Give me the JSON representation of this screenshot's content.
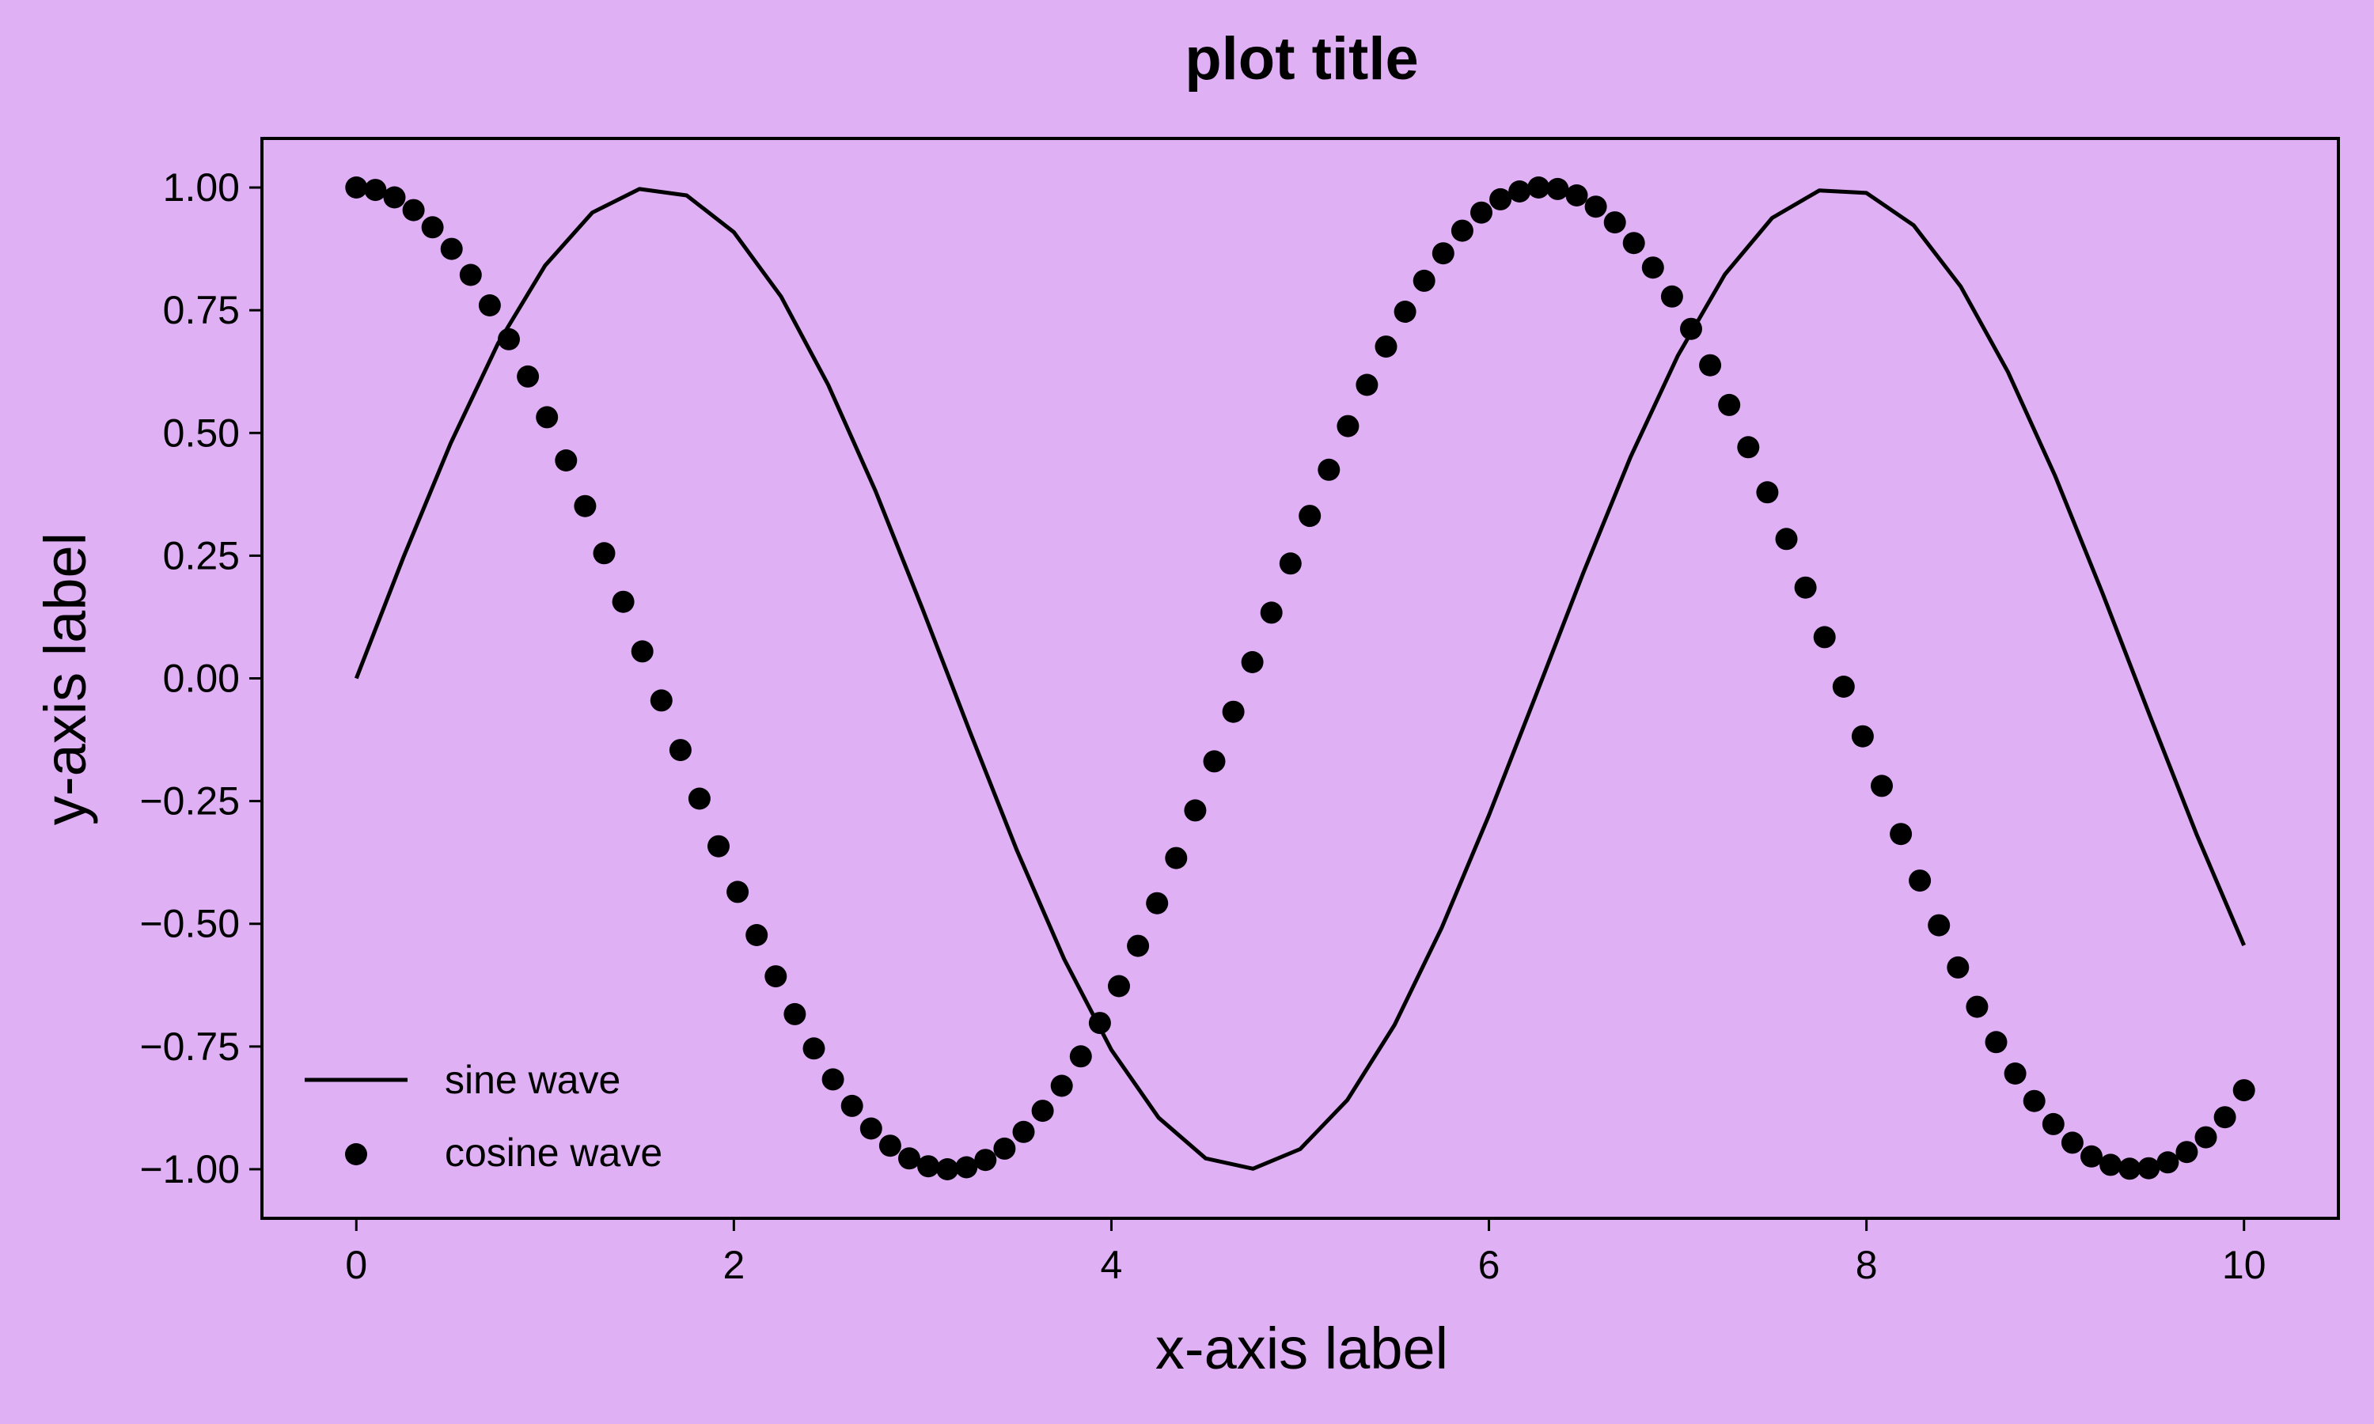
{
  "chart_data": {
    "type": "line",
    "title": "plot title",
    "xlabel": "x-axis label",
    "ylabel": "y-axis label",
    "xlim": [
      -0.5,
      10.5
    ],
    "ylim": [
      -1.1,
      1.1
    ],
    "x_ticks": [
      0,
      2,
      4,
      6,
      8,
      10
    ],
    "x_tick_labels": [
      "0",
      "2",
      "4",
      "6",
      "8",
      "10"
    ],
    "y_ticks": [
      1.0,
      0.75,
      0.5,
      0.25,
      0.0,
      -0.25,
      -0.5,
      -0.75,
      -1.0
    ],
    "y_tick_labels": [
      "1.00",
      "0.75",
      "0.50",
      "0.25",
      "0.00",
      "−0.25",
      "−0.50",
      "−0.75",
      "−1.00"
    ],
    "grid": false,
    "legend_position": "lower-left",
    "colors": {
      "background": "#e0b0f5",
      "ink": "#000000"
    },
    "series": [
      {
        "name": "sine wave",
        "kind": "line",
        "x": [
          0,
          0.25,
          0.5,
          0.75,
          1,
          1.25,
          1.5,
          1.75,
          2,
          2.25,
          2.5,
          2.75,
          3,
          3.25,
          3.5,
          3.75,
          4,
          4.25,
          4.5,
          4.75,
          5,
          5.25,
          5.5,
          5.75,
          6,
          6.25,
          6.5,
          6.75,
          7,
          7.25,
          7.5,
          7.75,
          8,
          8.25,
          8.5,
          8.75,
          9,
          9.25,
          9.5,
          9.75,
          10
        ],
        "y": [
          0.0,
          0.247,
          0.479,
          0.682,
          0.841,
          0.949,
          0.997,
          0.984,
          0.909,
          0.778,
          0.598,
          0.382,
          0.141,
          -0.108,
          -0.351,
          -0.572,
          -0.757,
          -0.895,
          -0.978,
          -0.999,
          -0.959,
          -0.859,
          -0.706,
          -0.508,
          -0.279,
          -0.033,
          0.215,
          0.451,
          0.657,
          0.823,
          0.938,
          0.994,
          0.989,
          0.923,
          0.798,
          0.624,
          0.412,
          0.174,
          -0.075,
          -0.319,
          -0.544
        ]
      },
      {
        "name": "cosine wave",
        "kind": "scatter",
        "x": [
          0.0,
          0.101,
          0.202,
          0.303,
          0.404,
          0.505,
          0.606,
          0.707,
          0.808,
          0.909,
          1.01,
          1.111,
          1.212,
          1.313,
          1.414,
          1.515,
          1.616,
          1.717,
          1.818,
          1.919,
          2.02,
          2.121,
          2.222,
          2.323,
          2.424,
          2.525,
          2.626,
          2.727,
          2.828,
          2.929,
          3.03,
          3.131,
          3.232,
          3.333,
          3.434,
          3.535,
          3.636,
          3.737,
          3.838,
          3.939,
          4.04,
          4.141,
          4.242,
          4.343,
          4.444,
          4.545,
          4.646,
          4.747,
          4.848,
          4.949,
          5.051,
          5.152,
          5.253,
          5.354,
          5.455,
          5.556,
          5.657,
          5.758,
          5.859,
          5.96,
          6.061,
          6.162,
          6.263,
          6.364,
          6.465,
          6.566,
          6.667,
          6.768,
          6.869,
          6.97,
          7.071,
          7.172,
          7.273,
          7.374,
          7.475,
          7.576,
          7.677,
          7.778,
          7.879,
          7.98,
          8.081,
          8.182,
          8.283,
          8.384,
          8.485,
          8.586,
          8.687,
          8.788,
          8.889,
          8.99,
          9.091,
          9.192,
          9.293,
          9.394,
          9.495,
          9.596,
          9.697,
          9.798,
          9.899,
          10.0
        ],
        "y": [
          1.0,
          0.995,
          0.98,
          0.954,
          0.919,
          0.875,
          0.822,
          0.76,
          0.691,
          0.615,
          0.532,
          0.444,
          0.351,
          0.255,
          0.156,
          0.055,
          -0.045,
          -0.146,
          -0.245,
          -0.342,
          -0.435,
          -0.523,
          -0.607,
          -0.684,
          -0.754,
          -0.817,
          -0.871,
          -0.917,
          -0.952,
          -0.978,
          -0.994,
          -1.0,
          -0.996,
          -0.981,
          -0.958,
          -0.924,
          -0.881,
          -0.83,
          -0.77,
          -0.702,
          -0.627,
          -0.545,
          -0.458,
          -0.366,
          -0.269,
          -0.169,
          -0.068,
          0.033,
          0.134,
          0.234,
          0.331,
          0.425,
          0.514,
          0.598,
          0.676,
          0.747,
          0.81,
          0.866,
          0.912,
          0.949,
          0.976,
          0.992,
          1.0,
          0.997,
          0.984,
          0.961,
          0.929,
          0.887,
          0.837,
          0.778,
          0.712,
          0.638,
          0.557,
          0.471,
          0.379,
          0.284,
          0.185,
          0.084,
          -0.017,
          -0.118,
          -0.219,
          -0.317,
          -0.412,
          -0.503,
          -0.589,
          -0.669,
          -0.741,
          -0.805,
          -0.861,
          -0.908,
          -0.946,
          -0.974,
          -0.991,
          -0.999,
          -0.998,
          -0.986,
          -0.965,
          -0.935,
          -0.894,
          -0.839
        ]
      }
    ]
  }
}
